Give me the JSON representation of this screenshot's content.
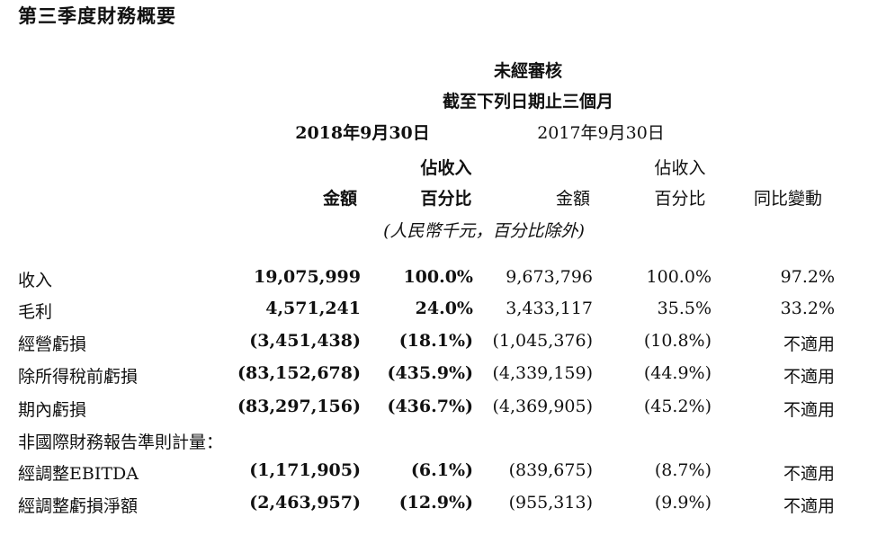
{
  "title": "第三季度財務概要",
  "header": {
    "unaudited": "未經審核",
    "period": "截至下列日期止三個月",
    "date_2018": "2018年9月30日",
    "date_2017": "2017年9月30日",
    "pct_top": "佔收入",
    "amount": "金額",
    "pct_bottom": "百分比",
    "yoy": "同比變動",
    "unit": "(人民幣千元，百分比除外)"
  },
  "rows": [
    {
      "label": "收入",
      "a2018": "19,075,999",
      "p2018": "100.0%",
      "a2017": "9,673,796",
      "p2017": "100.0%",
      "yoy": "97.2%"
    },
    {
      "label": "毛利",
      "a2018": "4,571,241",
      "p2018": "24.0%",
      "a2017": "3,433,117",
      "p2017": "35.5%",
      "yoy": "33.2%"
    },
    {
      "label": "經營虧損",
      "a2018": "(3,451,438)",
      "p2018": "(18.1%)",
      "a2017": "(1,045,376)",
      "p2017": "(10.8%)",
      "yoy": "不適用"
    },
    {
      "label": "除所得稅前虧損",
      "a2018": "(83,152,678)",
      "p2018": "(435.9%)",
      "a2017": "(4,339,159)",
      "p2017": "(44.9%)",
      "yoy": "不適用"
    },
    {
      "label": "期內虧損",
      "a2018": "(83,297,156)",
      "p2018": "(436.7%)",
      "a2017": "(4,369,905)",
      "p2017": "(45.2%)",
      "yoy": "不適用"
    },
    {
      "label": "非國際財務報告準則計量：",
      "a2018": "",
      "p2018": "",
      "a2017": "",
      "p2017": "",
      "yoy": ""
    },
    {
      "label": "經調整EBITDA",
      "a2018": "(1,171,905)",
      "p2018": "(6.1%)",
      "a2017": "(839,675)",
      "p2017": "(8.7%)",
      "yoy": "不適用"
    },
    {
      "label": "經調整虧損淨額",
      "a2018": "(2,463,957)",
      "p2018": "(12.9%)",
      "a2017": "(955,313)",
      "p2017": "(9.9%)",
      "yoy": "不適用"
    }
  ]
}
